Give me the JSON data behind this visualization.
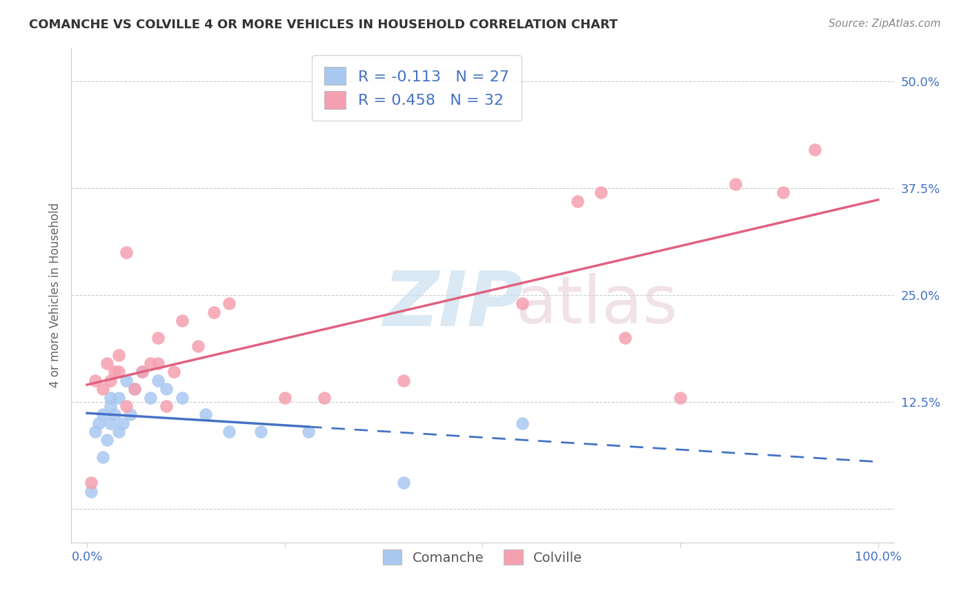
{
  "title": "COMANCHE VS COLVILLE 4 OR MORE VEHICLES IN HOUSEHOLD CORRELATION CHART",
  "source": "Source: ZipAtlas.com",
  "ylabel": "4 or more Vehicles in Household",
  "xlabel": "",
  "xlim": [
    -0.02,
    1.02
  ],
  "ylim": [
    -0.04,
    0.54
  ],
  "yticks": [
    0.0,
    0.125,
    0.25,
    0.375,
    0.5
  ],
  "ytick_labels": [
    "",
    "12.5%",
    "25.0%",
    "37.5%",
    "50.0%"
  ],
  "xticks": [
    0.0,
    0.25,
    0.5,
    0.75,
    1.0
  ],
  "xtick_labels": [
    "0.0%",
    "",
    "",
    "",
    "100.0%"
  ],
  "comanche_color": "#a8c8f0",
  "colville_color": "#f5a0b0",
  "comanche_line_color": "#4472c4",
  "colville_line_color": "#e06080",
  "R_comanche": -0.113,
  "N_comanche": 27,
  "R_colville": 0.458,
  "N_colville": 32,
  "legend_label_comanche": "Comanche",
  "legend_label_colville": "Colville",
  "comanche_x": [
    0.005,
    0.01,
    0.015,
    0.02,
    0.02,
    0.025,
    0.03,
    0.03,
    0.03,
    0.035,
    0.04,
    0.04,
    0.045,
    0.05,
    0.055,
    0.06,
    0.07,
    0.08,
    0.09,
    0.1,
    0.12,
    0.15,
    0.18,
    0.22,
    0.28,
    0.4,
    0.55
  ],
  "comanche_y": [
    0.02,
    0.09,
    0.1,
    0.06,
    0.11,
    0.08,
    0.1,
    0.12,
    0.13,
    0.11,
    0.09,
    0.13,
    0.1,
    0.15,
    0.11,
    0.14,
    0.16,
    0.13,
    0.15,
    0.14,
    0.13,
    0.11,
    0.09,
    0.09,
    0.09,
    0.03,
    0.1
  ],
  "colville_x": [
    0.005,
    0.01,
    0.02,
    0.025,
    0.03,
    0.035,
    0.04,
    0.04,
    0.05,
    0.05,
    0.06,
    0.07,
    0.08,
    0.09,
    0.09,
    0.1,
    0.11,
    0.12,
    0.14,
    0.16,
    0.18,
    0.25,
    0.3,
    0.4,
    0.55,
    0.62,
    0.65,
    0.68,
    0.75,
    0.82,
    0.88,
    0.92
  ],
  "colville_y": [
    0.03,
    0.15,
    0.14,
    0.17,
    0.15,
    0.16,
    0.18,
    0.16,
    0.12,
    0.3,
    0.14,
    0.16,
    0.17,
    0.2,
    0.17,
    0.12,
    0.16,
    0.22,
    0.19,
    0.23,
    0.24,
    0.13,
    0.13,
    0.15,
    0.24,
    0.36,
    0.37,
    0.2,
    0.13,
    0.38,
    0.37,
    0.42
  ]
}
